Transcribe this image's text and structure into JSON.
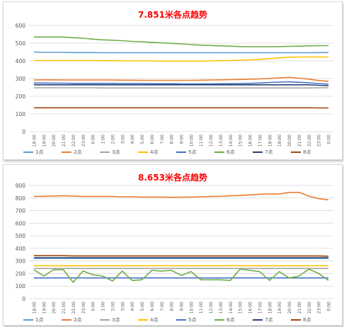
{
  "chart_data": [
    {
      "type": "line",
      "title": "7.851米各点趋势",
      "xlabel": "",
      "ylabel": "",
      "ylim": [
        0,
        600
      ],
      "yticks": [
        0,
        100,
        200,
        300,
        400,
        500,
        600
      ],
      "grid": true,
      "legend_position": "bottom",
      "categories": [
        "18:00",
        "19:00",
        "20:00",
        "21:00",
        "22:00",
        "23:00",
        "0:00",
        "1:00",
        "2:00",
        "3:00",
        "4:00",
        "5:00",
        "6:00",
        "7:00",
        "8:00",
        "9:00",
        "10:00",
        "11:00",
        "12:00",
        "13:00",
        "14:00",
        "15:00",
        "16:00",
        "17:00",
        "18:00",
        "19:00",
        "20:00",
        "21:00",
        "22:00",
        "23:00",
        "0:00"
      ],
      "series": [
        {
          "name": "1点",
          "color": "#5b9bd5",
          "values": [
            450,
            448,
            448,
            448,
            447,
            447,
            447,
            446,
            446,
            446,
            446,
            446,
            446,
            446,
            446,
            446,
            446,
            446,
            446,
            446,
            446,
            446,
            446,
            446,
            446,
            446,
            446,
            446,
            446,
            447,
            447
          ]
        },
        {
          "name": "2点",
          "color": "#ed7d31",
          "values": [
            292,
            293,
            293,
            292,
            292,
            292,
            292,
            292,
            292,
            291,
            291,
            290,
            290,
            290,
            290,
            290,
            290,
            291,
            292,
            293,
            294,
            295,
            296,
            298,
            301,
            304,
            307,
            302,
            297,
            289,
            285
          ]
        },
        {
          "name": "3点",
          "color": "#a5a5a5",
          "values": [
            248,
            248,
            248,
            248,
            248,
            248,
            248,
            247,
            247,
            247,
            247,
            247,
            247,
            247,
            247,
            247,
            247,
            247,
            247,
            247,
            247,
            247,
            247,
            247,
            247,
            247,
            247,
            247,
            247,
            248,
            248
          ]
        },
        {
          "name": "4点",
          "color": "#ffc000",
          "values": [
            402,
            402,
            402,
            402,
            402,
            402,
            402,
            401,
            401,
            400,
            400,
            400,
            400,
            399,
            399,
            399,
            399,
            399,
            400,
            401,
            402,
            404,
            406,
            409,
            413,
            417,
            421,
            422,
            422,
            422,
            422
          ]
        },
        {
          "name": "5点",
          "color": "#4472c4",
          "values": [
            275,
            275,
            274,
            274,
            273,
            273,
            273,
            273,
            273,
            272,
            272,
            272,
            271,
            271,
            271,
            270,
            270,
            270,
            270,
            271,
            271,
            272,
            273,
            275,
            278,
            280,
            282,
            279,
            276,
            272,
            268
          ]
        },
        {
          "name": "6点",
          "color": "#70ad47",
          "values": [
            535,
            535,
            535,
            535,
            531,
            528,
            523,
            519,
            517,
            514,
            510,
            508,
            505,
            502,
            499,
            496,
            492,
            489,
            487,
            485,
            483,
            481,
            480,
            480,
            480,
            481,
            482,
            483,
            485,
            486,
            486
          ]
        },
        {
          "name": "7点",
          "color": "#264478",
          "values": [
            265,
            265,
            265,
            265,
            265,
            265,
            265,
            265,
            265,
            265,
            265,
            265,
            265,
            265,
            265,
            265,
            265,
            265,
            265,
            265,
            265,
            265,
            265,
            265,
            265,
            265,
            265,
            265,
            265,
            262,
            260
          ]
        },
        {
          "name": "8点",
          "color": "#9e480e",
          "values": [
            135,
            135,
            135,
            135,
            135,
            135,
            135,
            135,
            135,
            135,
            135,
            135,
            135,
            135,
            135,
            135,
            135,
            135,
            135,
            135,
            135,
            135,
            135,
            135,
            135,
            135,
            135,
            135,
            135,
            134,
            134
          ]
        }
      ]
    },
    {
      "type": "line",
      "title": "8.653米各点趋势",
      "xlabel": "",
      "ylabel": "",
      "ylim": [
        0,
        900
      ],
      "yticks": [
        0,
        100,
        200,
        300,
        400,
        500,
        600,
        700,
        800,
        900
      ],
      "grid": true,
      "legend_position": "bottom",
      "categories": [
        "18:00",
        "19:00",
        "20:00",
        "21:00",
        "22:00",
        "23:00",
        "0:00",
        "1:00",
        "2:00",
        "3:00",
        "4:00",
        "5:00",
        "6:00",
        "7:00",
        "8:00",
        "9:00",
        "10:00",
        "11:00",
        "12:00",
        "13:00",
        "14:00",
        "15:00",
        "16:00",
        "17:00",
        "18:00",
        "19:00",
        "20:00",
        "21:00",
        "22:00",
        "23:00",
        "0:00"
      ],
      "series": [
        {
          "name": "1点",
          "color": "#5b9bd5",
          "values": [
            320,
            320,
            320,
            320,
            320,
            320,
            320,
            320,
            320,
            320,
            320,
            320,
            320,
            320,
            320,
            320,
            320,
            320,
            320,
            320,
            320,
            320,
            320,
            320,
            320,
            320,
            320,
            320,
            320,
            320,
            320
          ]
        },
        {
          "name": "2点",
          "color": "#ed7d31",
          "values": [
            812,
            814,
            816,
            818,
            815,
            812,
            812,
            812,
            812,
            810,
            810,
            808,
            808,
            808,
            806,
            807,
            808,
            810,
            812,
            814,
            818,
            820,
            825,
            830,
            832,
            832,
            845,
            845,
            815,
            795,
            785
          ]
        },
        {
          "name": "3点",
          "color": "#a5a5a5",
          "values": [
            240,
            240,
            240,
            240,
            240,
            240,
            240,
            240,
            240,
            240,
            240,
            240,
            240,
            240,
            240,
            240,
            240,
            240,
            240,
            240,
            240,
            240,
            240,
            240,
            240,
            240,
            240,
            240,
            240,
            240,
            240
          ]
        },
        {
          "name": "4点",
          "color": "#ffc000",
          "values": [
            262,
            262,
            262,
            262,
            262,
            262,
            262,
            262,
            262,
            262,
            262,
            262,
            262,
            262,
            262,
            262,
            262,
            262,
            262,
            262,
            262,
            262,
            262,
            262,
            262,
            262,
            262,
            262,
            262,
            262,
            262
          ]
        },
        {
          "name": "5点",
          "color": "#4472c4",
          "values": [
            165,
            165,
            165,
            165,
            165,
            165,
            165,
            165,
            165,
            165,
            165,
            165,
            165,
            165,
            165,
            165,
            165,
            165,
            165,
            165,
            165,
            165,
            165,
            165,
            165,
            165,
            165,
            165,
            165,
            165,
            165
          ]
        },
        {
          "name": "6点",
          "color": "#70ad47",
          "values": [
            230,
            180,
            230,
            230,
            130,
            220,
            190,
            180,
            140,
            220,
            145,
            150,
            225,
            220,
            225,
            185,
            215,
            150,
            150,
            150,
            145,
            235,
            225,
            215,
            145,
            215,
            165,
            180,
            235,
            200,
            145
          ]
        },
        {
          "name": "7点",
          "color": "#264478",
          "values": [
            325,
            325,
            325,
            325,
            325,
            325,
            325,
            325,
            325,
            325,
            325,
            325,
            325,
            325,
            325,
            325,
            325,
            325,
            325,
            325,
            325,
            325,
            325,
            325,
            325,
            325,
            325,
            325,
            325,
            325,
            325
          ]
        },
        {
          "name": "8点",
          "color": "#9e480e",
          "values": [
            342,
            342,
            342,
            342,
            340,
            340,
            340,
            340,
            340,
            340,
            340,
            340,
            340,
            340,
            340,
            340,
            340,
            340,
            340,
            340,
            340,
            340,
            340,
            340,
            340,
            340,
            340,
            340,
            340,
            340,
            338
          ]
        }
      ]
    }
  ]
}
